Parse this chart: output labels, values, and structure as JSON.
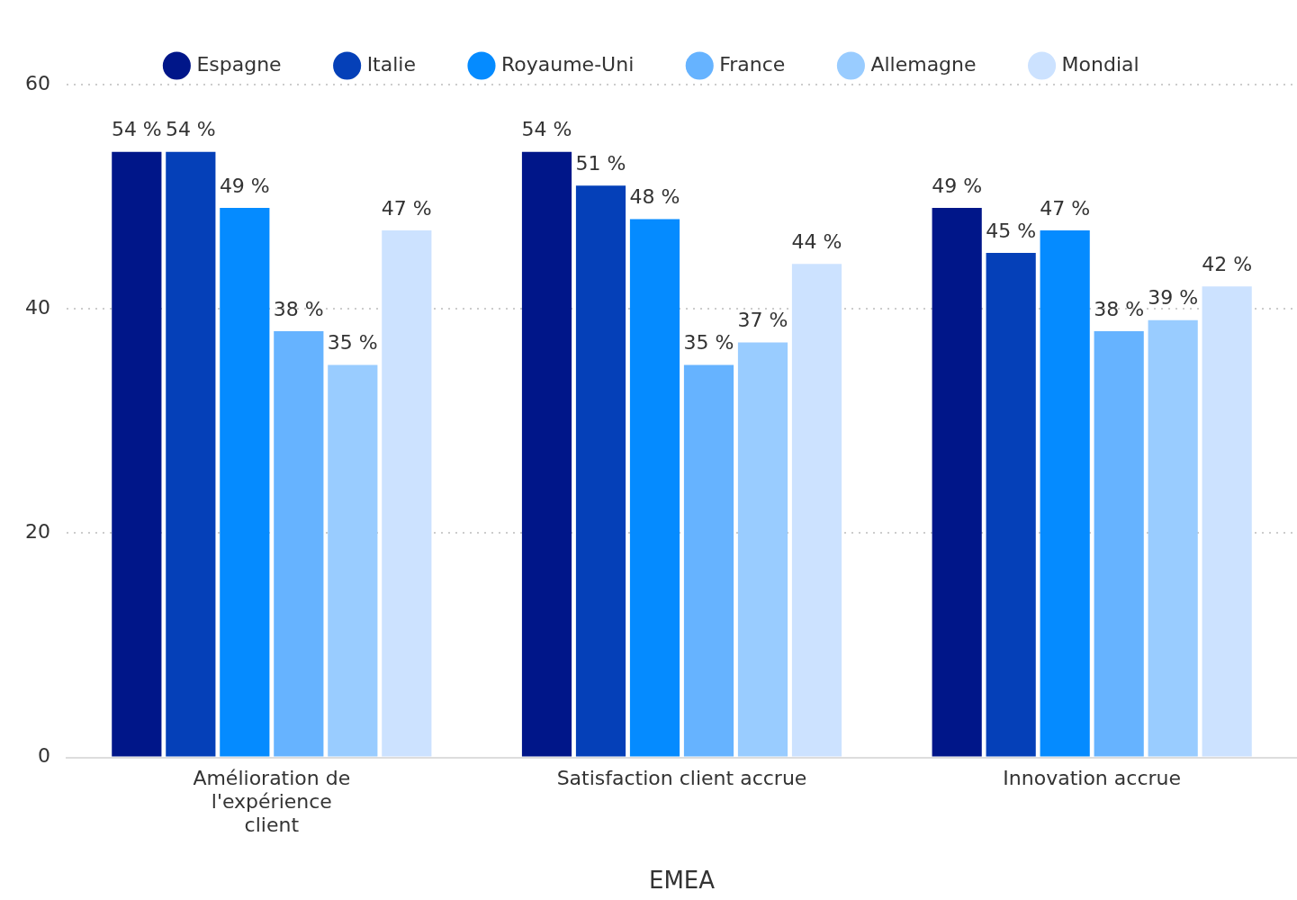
{
  "chart_data": {
    "type": "bar",
    "xlabel": "EMEA",
    "categories": [
      "Amélioration de l'expérience client",
      "Satisfaction client accrue",
      "Innovation accrue"
    ],
    "series": [
      {
        "name": "Espagne",
        "color": "#001689",
        "values": [
          54,
          54,
          49
        ],
        "value_labels": [
          "54 %",
          "54 %",
          "49 %"
        ]
      },
      {
        "name": "Italie",
        "color": "#0540b8",
        "values": [
          54,
          51,
          45
        ],
        "value_labels": [
          "54 %",
          "51 %",
          "45 %"
        ]
      },
      {
        "name": "Royaume-Uni",
        "color": "#058bff",
        "values": [
          49,
          48,
          47
        ],
        "value_labels": [
          "49 %",
          "48 %",
          "47 %"
        ]
      },
      {
        "name": "France",
        "color": "#66b3ff",
        "values": [
          38,
          35,
          38
        ],
        "value_labels": [
          "38 %",
          "35 %",
          "38 %"
        ]
      },
      {
        "name": "Allemagne",
        "color": "#99ccff",
        "values": [
          35,
          37,
          39
        ],
        "value_labels": [
          "35 %",
          "37 %",
          "39 %"
        ]
      },
      {
        "name": "Mondial",
        "color": "#cce2ff",
        "values": [
          47,
          44,
          42
        ],
        "value_labels": [
          "47 %",
          "44 %",
          "42 %"
        ]
      }
    ],
    "ylim": [
      0,
      60
    ],
    "yticks": [
      0,
      20,
      40,
      60
    ],
    "grid": "y",
    "legend": "top"
  }
}
